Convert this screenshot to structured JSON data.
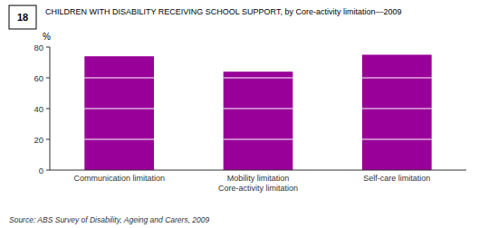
{
  "chart_data": {
    "type": "bar",
    "title": "CHILDREN WITH DISABILITY RECEIVING SCHOOL SUPPORT, by Core-activity limitation—2009",
    "categories": [
      "Communication limitation",
      "Mobility limitation\nCore-activity limitation",
      "Self-care limitation"
    ],
    "values": [
      74,
      64,
      75
    ],
    "color": "#990099",
    "ylim": [
      0,
      80
    ],
    "yticks": [
      0,
      20,
      40,
      60,
      80
    ],
    "ylabel": "%",
    "annotations": [
      "18",
      "Source: ABS Survey of Disability, Ageing and Carers, 2009"
    ],
    "grid": false
  }
}
